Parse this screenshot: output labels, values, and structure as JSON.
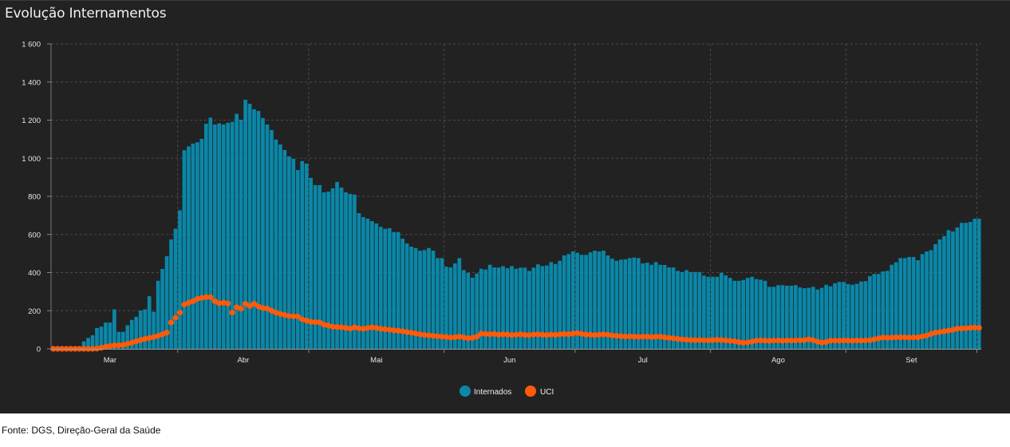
{
  "title": "Evolução Internamentos",
  "footer": "Fonte: DGS, Direção-Geral da Saúde",
  "chart_data": {
    "type": "bar+scatter",
    "title": "Evolução Internamentos",
    "xlabel": "",
    "ylabel": "",
    "ylim": [
      0,
      1600
    ],
    "yticks": [
      0,
      200,
      400,
      600,
      800,
      1000,
      1200,
      1400,
      1600
    ],
    "ytick_labels": [
      "0",
      "200",
      "400",
      "600",
      "800",
      "1 000",
      "1 200",
      "1 400",
      "1 600"
    ],
    "months": [
      {
        "label": "Mar",
        "start_index": -2
      },
      {
        "label": "Abr",
        "start_index": 29
      },
      {
        "label": "Mai",
        "start_index": 59
      },
      {
        "label": "Jun",
        "start_index": 90
      },
      {
        "label": "Jul",
        "start_index": 120
      },
      {
        "label": "Ago",
        "start_index": 151
      },
      {
        "label": "Set",
        "start_index": 182
      }
    ],
    "period_end_index": 212,
    "grid": true,
    "legend_position": "bottom-center",
    "series": [
      {
        "name": "Internados",
        "kind": "bar",
        "color": "#0a87a8",
        "values": [
          0,
          0,
          0,
          0,
          0,
          0,
          0,
          39,
          57,
          71,
          109,
          116,
          138,
          138,
          207,
          89,
          89,
          124,
          152,
          168,
          201,
          207,
          276,
          194,
          357,
          419,
          486,
          574,
          630,
          727,
          1042,
          1062,
          1077,
          1084,
          1102,
          1181,
          1213,
          1177,
          1183,
          1177,
          1186,
          1191,
          1233,
          1202,
          1307,
          1286,
          1257,
          1248,
          1211,
          1177,
          1148,
          1098,
          1072,
          1043,
          1010,
          997,
          938,
          985,
          972,
          897,
          859,
          859,
          821,
          825,
          842,
          876,
          846,
          821,
          813,
          809,
          712,
          691,
          683,
          670,
          658,
          640,
          630,
          633,
          613,
          613,
          578,
          553,
          536,
          529,
          515,
          518,
          529,
          515,
          476,
          476,
          431,
          427,
          448,
          476,
          413,
          399,
          373,
          395,
          420,
          416,
          441,
          427,
          427,
          434,
          423,
          434,
          420,
          426,
          426,
          409,
          426,
          443,
          434,
          437,
          455,
          445,
          462,
          490,
          497,
          511,
          504,
          493,
          493,
          506,
          515,
          511,
          515,
          490,
          473,
          462,
          468,
          470,
          476,
          479,
          476,
          448,
          452,
          441,
          455,
          441,
          440,
          427,
          427,
          409,
          403,
          413,
          403,
          403,
          403,
          384,
          378,
          378,
          378,
          399,
          385,
          372,
          357,
          357,
          361,
          372,
          378,
          366,
          363,
          357,
          325,
          325,
          334,
          334,
          331,
          331,
          334,
          322,
          318,
          320,
          325,
          311,
          320,
          336,
          328,
          344,
          351,
          351,
          340,
          336,
          341,
          353,
          355,
          381,
          393,
          393,
          406,
          409,
          441,
          454,
          476,
          476,
          482,
          482,
          465,
          497,
          511,
          518,
          549,
          574,
          591,
          623,
          616,
          637,
          661,
          661,
          666,
          683,
          683
        ]
      },
      {
        "name": "UCI",
        "kind": "scatter",
        "color": "#ff5a0a",
        "values": [
          0,
          0,
          0,
          0,
          0,
          0,
          0,
          0,
          0,
          0,
          1,
          6,
          11,
          15,
          18,
          19,
          20,
          26,
          32,
          39,
          46,
          52,
          57,
          62,
          68,
          76,
          85,
          138,
          163,
          190,
          232,
          242,
          250,
          262,
          267,
          272,
          271,
          250,
          239,
          242,
          238,
          190,
          218,
          211,
          236,
          225,
          236,
          222,
          214,
          211,
          200,
          190,
          183,
          178,
          172,
          171,
          170,
          155,
          148,
          141,
          140,
          139,
          127,
          122,
          116,
          114,
          113,
          110,
          106,
          113,
          108,
          105,
          109,
          113,
          110,
          105,
          103,
          100,
          97,
          95,
          92,
          88,
          85,
          80,
          76,
          73,
          71,
          68,
          66,
          64,
          62,
          59,
          61,
          64,
          60,
          55,
          58,
          64,
          80,
          78,
          76,
          78,
          74,
          76,
          75,
          72,
          74,
          76,
          73,
          72,
          75,
          76,
          74,
          72,
          75,
          73,
          76,
          78,
          76,
          80,
          83,
          78,
          75,
          74,
          72,
          74,
          76,
          74,
          70,
          68,
          66,
          64,
          65,
          64,
          63,
          64,
          64,
          62,
          63,
          64,
          60,
          58,
          55,
          52,
          50,
          48,
          46,
          45,
          46,
          45,
          44,
          46,
          47,
          46,
          44,
          42,
          40,
          35,
          32,
          34,
          38,
          43,
          44,
          43,
          42,
          43,
          44,
          42,
          44,
          43,
          44,
          45,
          45,
          50,
          45,
          38,
          32,
          36,
          43,
          43,
          42,
          44,
          43,
          42,
          44,
          43,
          44,
          45,
          50,
          55,
          60,
          58,
          59,
          61,
          60,
          61,
          59,
          60,
          60,
          65,
          70,
          78,
          85,
          88,
          92,
          95,
          100,
          106,
          107,
          108,
          110,
          112,
          110
        ]
      }
    ]
  }
}
